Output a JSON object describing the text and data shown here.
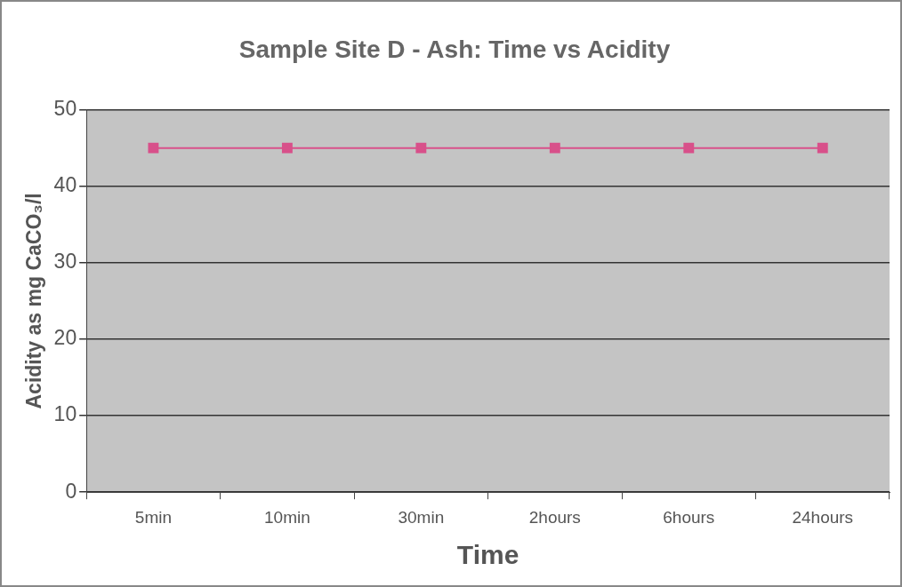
{
  "chart_data": {
    "type": "line",
    "title": "Sample Site D - Ash: Time vs Acidity",
    "xlabel": "Time",
    "ylabel": "Acidity as mg CaCO₃/l",
    "categories": [
      "5min",
      "10min",
      "30min",
      "2hours",
      "6hours",
      "24hours"
    ],
    "series": [
      {
        "color": "#d8508a",
        "values": [
          45,
          45,
          45,
          45,
          45,
          45
        ]
      }
    ],
    "ylim": [
      0,
      50
    ],
    "yticks": [
      0,
      10,
      20,
      30,
      40,
      50
    ],
    "grid": "y",
    "legend": false,
    "marker": "square",
    "line_style": "solid"
  }
}
